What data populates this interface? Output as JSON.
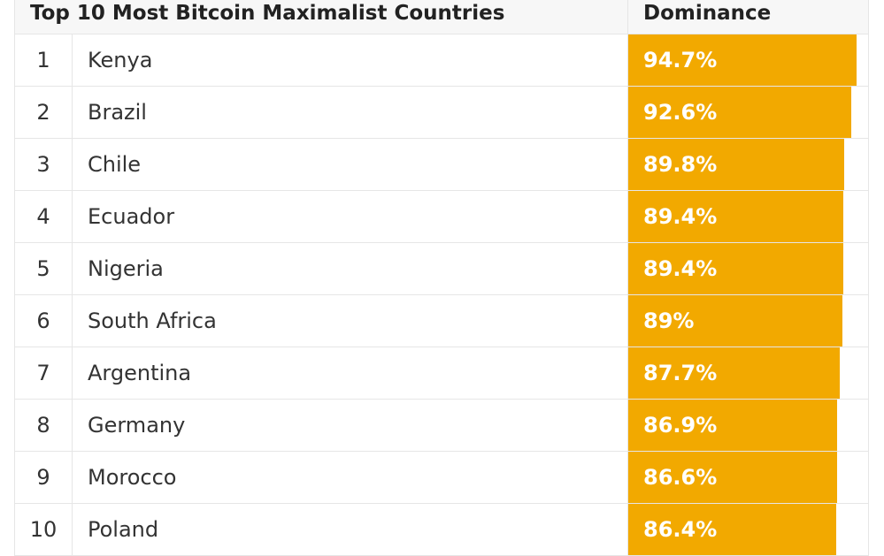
{
  "chart_data": {
    "type": "table",
    "title": "Top 10 Most Bitcoin Maximalist Countries",
    "value_header": "Dominance",
    "unit": "%",
    "bar_color": "#f2a900",
    "rows": [
      {
        "rank": "1",
        "country": "Kenya",
        "value": 94.7,
        "label": "94.7%"
      },
      {
        "rank": "2",
        "country": "Brazil",
        "value": 92.6,
        "label": "92.6%"
      },
      {
        "rank": "3",
        "country": "Chile",
        "value": 89.8,
        "label": "89.8%"
      },
      {
        "rank": "4",
        "country": "Ecuador",
        "value": 89.4,
        "label": "89.4%"
      },
      {
        "rank": "5",
        "country": "Nigeria",
        "value": 89.4,
        "label": "89.4%"
      },
      {
        "rank": "6",
        "country": "South Africa",
        "value": 89,
        "label": "89%"
      },
      {
        "rank": "7",
        "country": "Argentina",
        "value": 87.7,
        "label": "87.7%"
      },
      {
        "rank": "8",
        "country": "Germany",
        "value": 86.9,
        "label": "86.9%"
      },
      {
        "rank": "9",
        "country": "Morocco",
        "value": 86.6,
        "label": "86.6%"
      },
      {
        "rank": "10",
        "country": "Poland",
        "value": 86.4,
        "label": "86.4%"
      }
    ]
  }
}
